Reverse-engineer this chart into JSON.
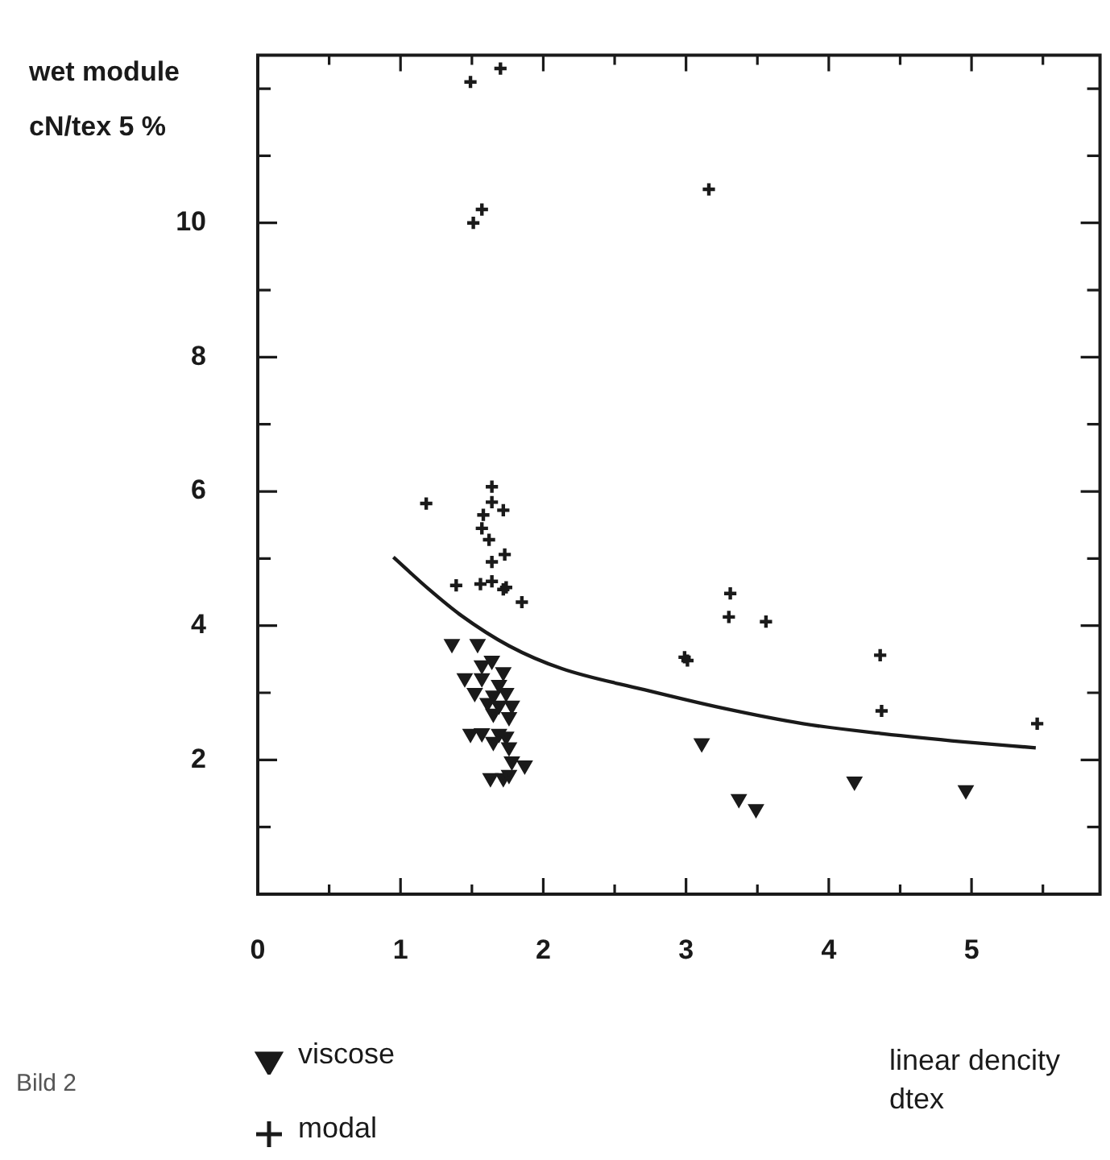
{
  "chart_data": {
    "type": "scatter",
    "xlabel": "linear dencity\ndtex",
    "ylabel": "wet module\ncN/tex 5 %",
    "annotations": [
      "Bild 2"
    ],
    "xlim": [
      0,
      5.9
    ],
    "ylim": [
      0,
      12.5
    ],
    "xticks": [
      0,
      {
        "value": 0.5,
        "label": null
      },
      1,
      {
        "value": 1.5,
        "label": null
      },
      2,
      {
        "value": 2.5,
        "label": null
      },
      3,
      {
        "value": 3.5,
        "label": null
      },
      4,
      {
        "value": 4.5,
        "label": null
      },
      5,
      {
        "value": 5.5,
        "label": null
      }
    ],
    "yticks": [
      {
        "value": 1,
        "label": null
      },
      2,
      {
        "value": 3,
        "label": null
      },
      4,
      {
        "value": 5,
        "label": null
      },
      6,
      {
        "value": 7,
        "label": null
      },
      8,
      {
        "value": 9,
        "label": null
      },
      10,
      {
        "value": 11,
        "label": null
      },
      {
        "value": 12,
        "label": null
      }
    ],
    "grid": false,
    "legend": "bottom left",
    "series": [
      {
        "name": "viscose",
        "marker": "triangle",
        "color": "#1a1a1a",
        "x": [
          1.36,
          1.54,
          1.57,
          1.64,
          1.72,
          1.45,
          1.57,
          1.69,
          1.52,
          1.65,
          1.74,
          1.61,
          1.69,
          1.78,
          1.76,
          1.65,
          1.49,
          1.57,
          1.69,
          1.74,
          1.65,
          1.76,
          1.78,
          1.87,
          1.63,
          1.72,
          1.76,
          3.11,
          3.37,
          3.49,
          4.18,
          4.96
        ],
        "values": [
          3.73,
          3.73,
          3.41,
          3.48,
          3.31,
          3.22,
          3.22,
          3.12,
          3.0,
          2.96,
          3.0,
          2.85,
          2.81,
          2.81,
          2.64,
          2.69,
          2.39,
          2.4,
          2.39,
          2.35,
          2.27,
          2.19,
          1.98,
          1.92,
          1.73,
          1.73,
          1.78,
          2.25,
          1.42,
          1.27,
          1.68,
          1.55
        ]
      },
      {
        "name": "modal",
        "marker": "cross",
        "color": "#1a1a1a",
        "x": [
          1.49,
          1.7,
          1.51,
          1.57,
          3.16,
          1.64,
          1.18,
          1.64,
          1.72,
          1.58,
          1.57,
          1.62,
          1.73,
          1.64,
          1.39,
          1.56,
          1.64,
          1.72,
          1.74,
          1.85,
          3.31,
          3.3,
          3.56,
          2.99,
          3.01,
          4.36,
          4.37,
          5.46
        ],
        "values": [
          12.1,
          12.3,
          10.0,
          10.2,
          10.5,
          6.07,
          5.82,
          5.84,
          5.72,
          5.65,
          5.45,
          5.28,
          5.06,
          4.95,
          4.6,
          4.62,
          4.66,
          4.54,
          4.57,
          4.35,
          4.48,
          4.13,
          4.06,
          3.53,
          3.48,
          3.56,
          2.73,
          2.54
        ]
      },
      {
        "type": "line",
        "marker": "none",
        "color": "#1a1a1a",
        "x": [
          0.95,
          1.2,
          1.42,
          1.76,
          2.13,
          2.7,
          3.26,
          3.82,
          4.38,
          4.94,
          5.45
        ],
        "values": [
          5.02,
          4.54,
          4.16,
          3.7,
          3.36,
          3.05,
          2.77,
          2.54,
          2.39,
          2.27,
          2.18
        ]
      }
    ]
  }
}
